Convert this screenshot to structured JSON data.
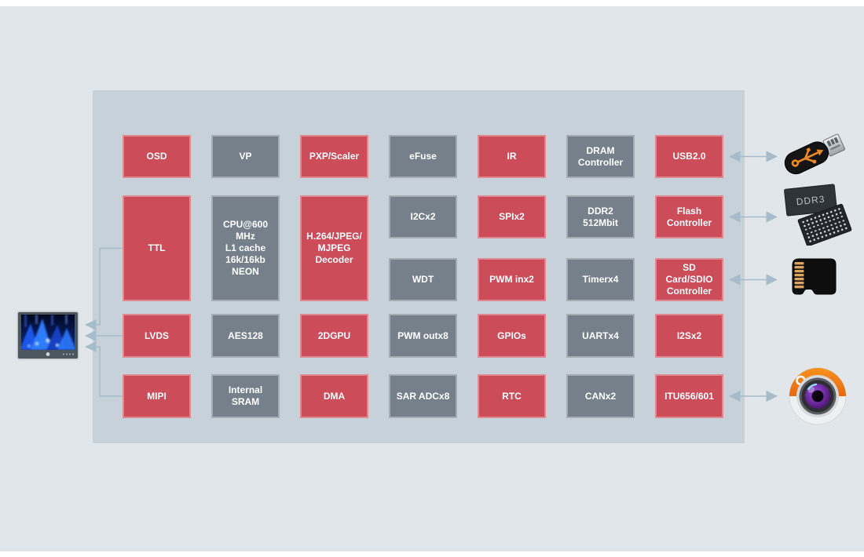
{
  "scene": {
    "panel_bg": "#e1e6eb",
    "container_bg": "#c7d1d9",
    "block_red": "#cd4c59",
    "block_gray": "#75808a",
    "block_text_color": "#ffffff",
    "arrow_color": "#a6bcca"
  },
  "blocks": [
    {
      "id": "osd",
      "lines": [
        "OSD"
      ],
      "variant": "red",
      "col": 0,
      "row": "r1"
    },
    {
      "id": "vp",
      "lines": [
        "VP"
      ],
      "variant": "gray",
      "col": 1,
      "row": "r1"
    },
    {
      "id": "pxp-scaler",
      "lines": [
        "PXP/Scaler"
      ],
      "variant": "red",
      "col": 2,
      "row": "r1"
    },
    {
      "id": "efuse",
      "lines": [
        "eFuse"
      ],
      "variant": "gray",
      "col": 3,
      "row": "r1"
    },
    {
      "id": "ir",
      "lines": [
        "IR"
      ],
      "variant": "red",
      "col": 4,
      "row": "r1"
    },
    {
      "id": "dram-controller",
      "lines": [
        "DRAM",
        "Controller"
      ],
      "variant": "gray",
      "col": 5,
      "row": "r1"
    },
    {
      "id": "usb2",
      "lines": [
        "USB2.0"
      ],
      "variant": "red",
      "col": 6,
      "row": "r1"
    },
    {
      "id": "ttl",
      "lines": [
        "TTL"
      ],
      "variant": "red",
      "col": 0,
      "row": "r2"
    },
    {
      "id": "cpu",
      "lines": [
        "CPU@600",
        "MHz",
        "L1 cache",
        "16k/16kb",
        "NEON"
      ],
      "variant": "gray",
      "col": 1,
      "row": "r2"
    },
    {
      "id": "h264-mjpeg-decoder",
      "lines": [
        "H.264/JPEG/",
        "MJPEG",
        "Decoder"
      ],
      "variant": "red",
      "col": 2,
      "row": "r2"
    },
    {
      "id": "i2cx2",
      "lines": [
        "I2Cx2"
      ],
      "variant": "gray",
      "col": 3,
      "row": "r2a"
    },
    {
      "id": "spix2",
      "lines": [
        "SPIx2"
      ],
      "variant": "red",
      "col": 4,
      "row": "r2a"
    },
    {
      "id": "ddr2-512mbit",
      "lines": [
        "DDR2",
        "512Mbit"
      ],
      "variant": "gray",
      "col": 5,
      "row": "r2a"
    },
    {
      "id": "flash-controller",
      "lines": [
        "Flash",
        "Controller"
      ],
      "variant": "red",
      "col": 6,
      "row": "r2a"
    },
    {
      "id": "wdt",
      "lines": [
        "WDT"
      ],
      "variant": "gray",
      "col": 3,
      "row": "r2b"
    },
    {
      "id": "pwm-inx2",
      "lines": [
        "PWM inx2"
      ],
      "variant": "red",
      "col": 4,
      "row": "r2b"
    },
    {
      "id": "timerx4",
      "lines": [
        "Timerx4"
      ],
      "variant": "gray",
      "col": 5,
      "row": "r2b"
    },
    {
      "id": "sd-sdio-controller",
      "lines": [
        "SD",
        "Card/SDIO",
        "Controller"
      ],
      "variant": "red",
      "col": 6,
      "row": "r2b"
    },
    {
      "id": "lvds",
      "lines": [
        "LVDS"
      ],
      "variant": "red",
      "col": 0,
      "row": "r3"
    },
    {
      "id": "aes128",
      "lines": [
        "AES128"
      ],
      "variant": "gray",
      "col": 1,
      "row": "r3"
    },
    {
      "id": "2dgpu",
      "lines": [
        "2DGPU"
      ],
      "variant": "red",
      "col": 2,
      "row": "r3"
    },
    {
      "id": "pwm-outx8",
      "lines": [
        "PWM outx8"
      ],
      "variant": "gray",
      "col": 3,
      "row": "r3"
    },
    {
      "id": "gpios",
      "lines": [
        "GPIOs"
      ],
      "variant": "red",
      "col": 4,
      "row": "r3"
    },
    {
      "id": "uartx4",
      "lines": [
        "UARTx4"
      ],
      "variant": "gray",
      "col": 5,
      "row": "r3"
    },
    {
      "id": "i2sx2",
      "lines": [
        "I2Sx2"
      ],
      "variant": "red",
      "col": 6,
      "row": "r3"
    },
    {
      "id": "mipi",
      "lines": [
        "MIPI"
      ],
      "variant": "red",
      "col": 0,
      "row": "r4"
    },
    {
      "id": "internal-sram",
      "lines": [
        "Internal",
        "SRAM"
      ],
      "variant": "gray",
      "col": 1,
      "row": "r4"
    },
    {
      "id": "dma",
      "lines": [
        "DMA"
      ],
      "variant": "red",
      "col": 2,
      "row": "r4"
    },
    {
      "id": "sar-adcx8",
      "lines": [
        "SAR ADCx8"
      ],
      "variant": "gray",
      "col": 3,
      "row": "r4"
    },
    {
      "id": "rtc",
      "lines": [
        "RTC"
      ],
      "variant": "red",
      "col": 4,
      "row": "r4"
    },
    {
      "id": "canx2",
      "lines": [
        "CANx2"
      ],
      "variant": "gray",
      "col": 5,
      "row": "r4"
    },
    {
      "id": "itu656-601",
      "lines": [
        "ITU656/601"
      ],
      "variant": "red",
      "col": 6,
      "row": "r4"
    }
  ],
  "peripherals": {
    "ddr3_label": "DDR3",
    "icons": [
      "usb-flash-drive",
      "ddr3-memory",
      "micro-sd-card",
      "camera",
      "display-monitor"
    ]
  },
  "connections": {
    "to_display": [
      {
        "from": "TTL",
        "arrow": "single"
      },
      {
        "from": "LVDS",
        "arrow": "single"
      },
      {
        "from": "MIPI",
        "arrow": "single"
      }
    ],
    "to_peripherals": [
      {
        "from": "USB2.0",
        "to": "usb-flash-drive",
        "arrow": "double"
      },
      {
        "from": "Flash Controller",
        "to": "ddr3-memory",
        "arrow": "double"
      },
      {
        "from": "SD Card/SDIO Controller",
        "to": "micro-sd-card",
        "arrow": "double"
      },
      {
        "from": "ITU656/601",
        "to": "camera",
        "arrow": "double"
      }
    ]
  }
}
